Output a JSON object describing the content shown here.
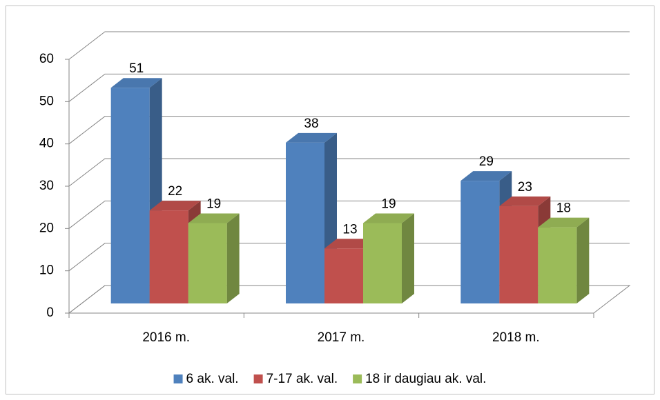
{
  "chart_data": {
    "type": "bar3d",
    "categories": [
      "2016 m.",
      "2017 m.",
      "2018 m."
    ],
    "series": [
      {
        "name": "6 ak. val.",
        "color": "#4f81bd",
        "values": [
          51,
          38,
          29
        ]
      },
      {
        "name": "7-17 ak. val.",
        "color": "#c0504d",
        "values": [
          22,
          13,
          23
        ]
      },
      {
        "name": "18 ir daugiau ak. val.",
        "color": "#9bbb59",
        "values": [
          19,
          19,
          18
        ]
      }
    ],
    "ylim": [
      0,
      60
    ],
    "yticks": [
      0,
      10,
      20,
      30,
      40,
      50,
      60
    ],
    "grid": true,
    "legend": "bottom"
  }
}
